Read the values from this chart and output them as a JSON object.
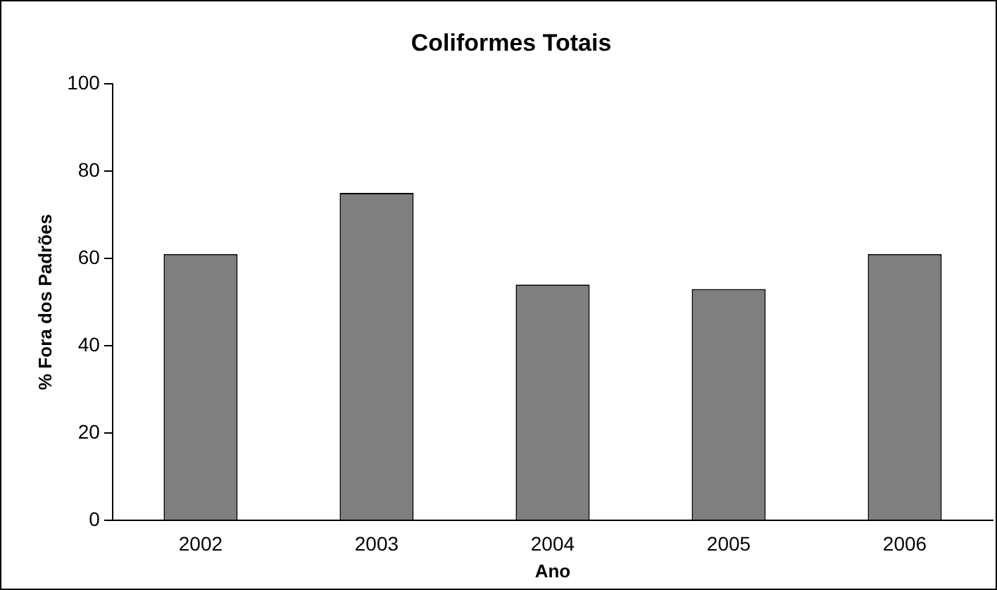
{
  "chart_data": {
    "type": "bar",
    "title": "Coliformes Totais",
    "xlabel": "Ano",
    "ylabel": "% Fora dos Padrões",
    "categories": [
      "2002",
      "2003",
      "2004",
      "2005",
      "2006"
    ],
    "values": [
      61,
      75,
      54,
      53,
      61
    ],
    "color": "#7f7f7f",
    "ylim": [
      0,
      100
    ],
    "yticks": [
      0,
      20,
      40,
      60,
      80,
      100
    ],
    "grid": false,
    "legend": false
  }
}
